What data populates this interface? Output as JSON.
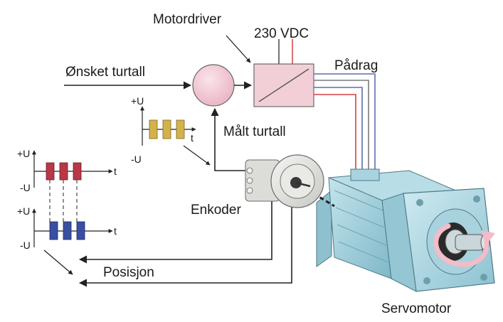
{
  "labels": {
    "motordriver": "Motordriver",
    "supply": "230 VDC",
    "padrag": "Pådrag",
    "onsket_turtall": "Ønsket turtall",
    "malt_turtall": "Målt turtall",
    "enkoder": "Enkoder",
    "posisjon": "Posisjon",
    "servomotor": "Servomotor"
  },
  "axis": {
    "plus_u": "+U",
    "minus_u": "-U",
    "t": "t"
  },
  "colors": {
    "driver_box": "#f2cfd6",
    "comparator": "#f4cdd8",
    "tach_pulse": "#d4b24a",
    "pulse_red": "#b83845",
    "pulse_blue": "#3b4fa2",
    "motor_body": "#9fd0dc",
    "wire_red": "#d04040",
    "wire_blue": "#5a6fb0"
  },
  "icons": [
    "comparator-circle",
    "driver-box",
    "encoder",
    "servomotor",
    "rotation-arrow"
  ]
}
